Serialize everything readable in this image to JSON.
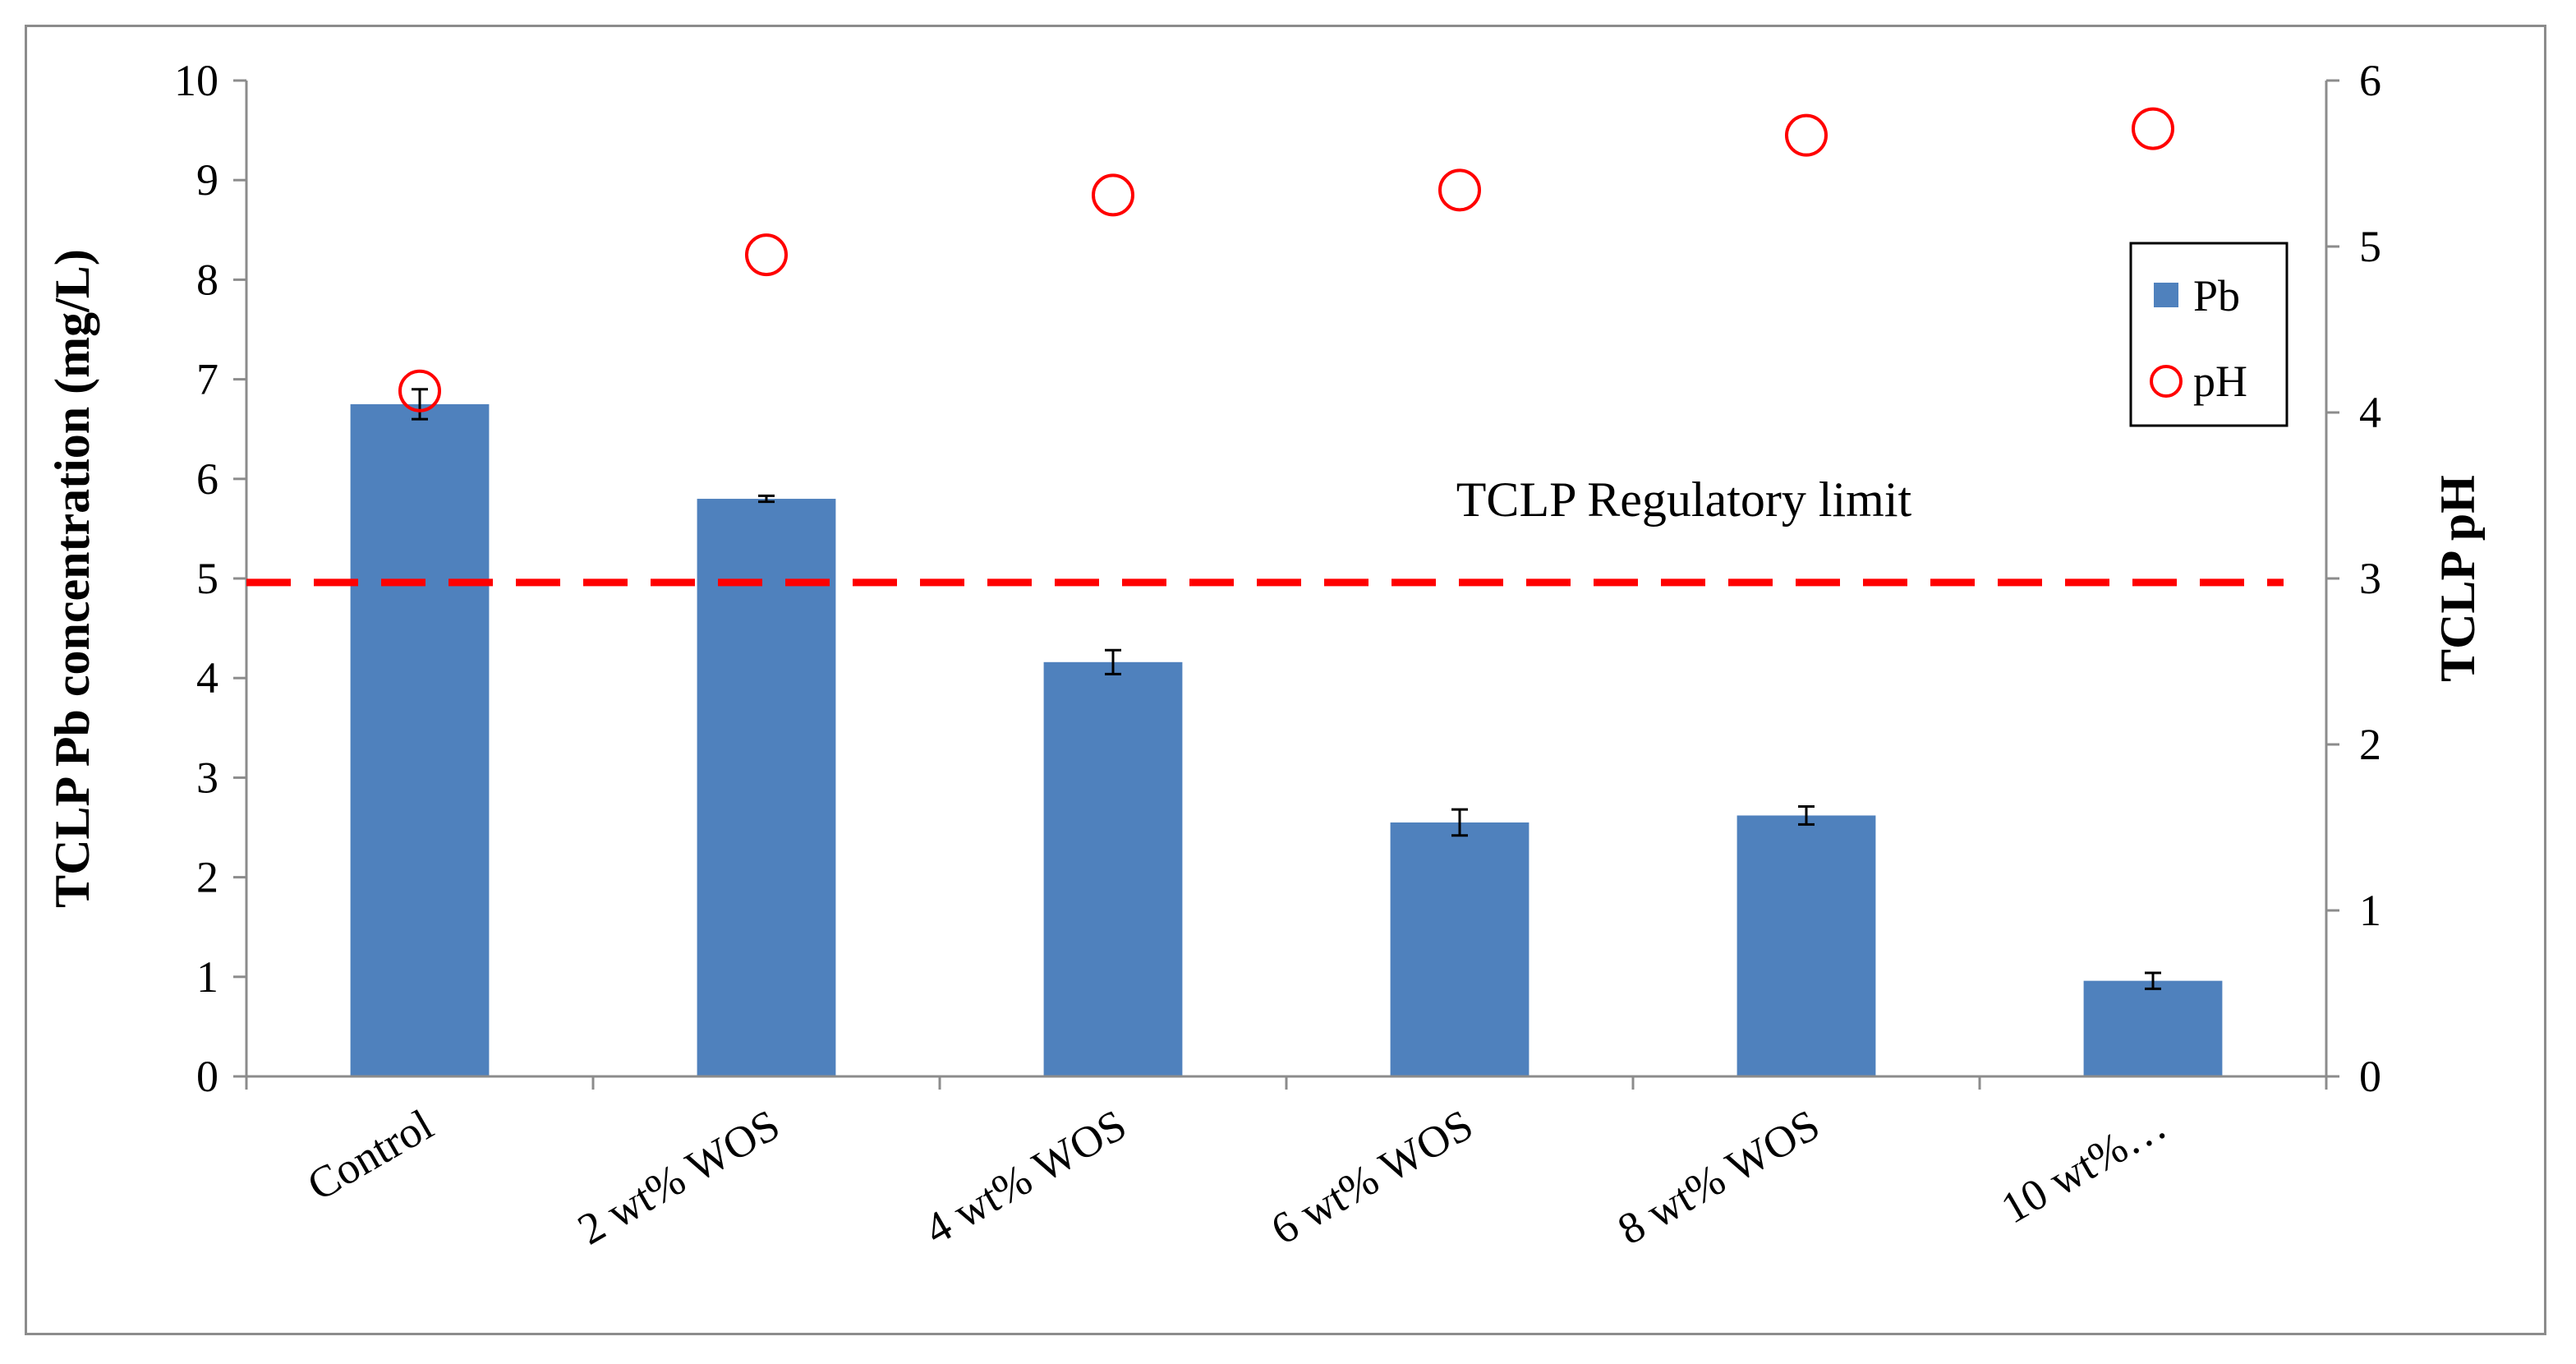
{
  "chart_data": {
    "type": "bar",
    "categories": [
      "Control",
      "2 wt% WOS",
      "4 wt% WOS",
      "6 wt% WOS",
      "8 wt% WOS",
      "10 wt%…"
    ],
    "series": [
      {
        "name": "Pb",
        "type": "bar",
        "axis": "left",
        "values": [
          6.75,
          5.8,
          4.16,
          2.55,
          2.62,
          0.96
        ],
        "errors": [
          0.15,
          0.03,
          0.12,
          0.13,
          0.09,
          0.08
        ],
        "color": "#4f81bd"
      },
      {
        "name": "pH",
        "type": "scatter",
        "axis": "right",
        "values": [
          4.13,
          4.95,
          5.31,
          5.34,
          5.67,
          5.71
        ],
        "color": "#ff0000"
      }
    ],
    "ylabel": "TCLP Pb concentration (mg/L)",
    "y2label": "TCLP pH",
    "ylim": [
      0,
      10
    ],
    "y2lim": [
      0,
      6
    ],
    "yticks": [
      "0",
      "1",
      "2",
      "3",
      "4",
      "5",
      "6",
      "7",
      "8",
      "9",
      "10"
    ],
    "y2ticks": [
      "0",
      "1",
      "2",
      "3",
      "4",
      "5",
      "6"
    ],
    "reference_line": {
      "value": 4.96,
      "label": "TCLP Regulatory limit",
      "color": "#ff0000"
    },
    "legend": {
      "position": "right",
      "entries": [
        "Pb",
        "pH"
      ]
    },
    "grid": false
  }
}
